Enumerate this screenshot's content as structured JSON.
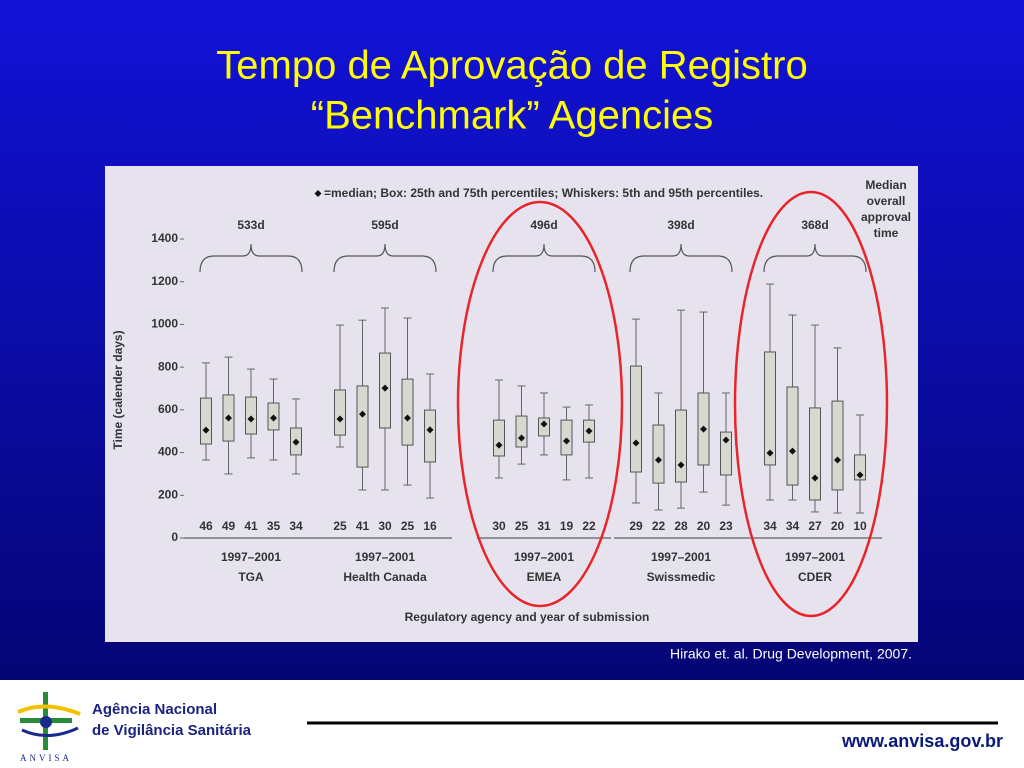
{
  "slide": {
    "title_lines": [
      "Tempo de Aprovação de Registro",
      "“Benchmark” Agencies"
    ],
    "citation": "Hirako et. al. Drug Development, 2007.",
    "footer": {
      "org_lines": [
        "Agência Nacional",
        "de Vigilância Sanitária"
      ],
      "logo_text": "ANVISA",
      "url": "www.anvisa.gov.br"
    }
  },
  "chart_data": {
    "type": "box",
    "legend_text": "=median; Box: 25th and 75th percentiles; Whiskers: 5th and 95th percentiles.",
    "median_note_lines": [
      "Median",
      "overall",
      "approval",
      "time"
    ],
    "y_label": "Time (calender days)",
    "x_label": "Regulatory agency and year of submission",
    "ylim": [
      0,
      1400
    ],
    "yticks": [
      0,
      200,
      400,
      600,
      800,
      1000,
      1200,
      1400
    ],
    "groups": [
      {
        "period": "1997–2001",
        "agency": "TGA",
        "median_time": "533d",
        "boxes": [
          {
            "n": 46,
            "p5": 365,
            "q1": 440,
            "median": 505,
            "q3": 655,
            "p95": 820
          },
          {
            "n": 49,
            "p5": 300,
            "q1": 454,
            "median": 562,
            "q3": 670,
            "p95": 847
          },
          {
            "n": 41,
            "p5": 375,
            "q1": 487,
            "median": 557,
            "q3": 660,
            "p95": 791
          },
          {
            "n": 35,
            "p5": 365,
            "q1": 506,
            "median": 562,
            "q3": 632,
            "p95": 744
          },
          {
            "n": 34,
            "p5": 300,
            "q1": 389,
            "median": 449,
            "q3": 515,
            "p95": 651
          }
        ]
      },
      {
        "period": "1997–2001",
        "agency": "Health Canada",
        "median_time": "595d",
        "boxes": [
          {
            "n": 25,
            "p5": 426,
            "q1": 482,
            "median": 557,
            "q3": 693,
            "p95": 997
          },
          {
            "n": 41,
            "p5": 225,
            "q1": 332,
            "median": 580,
            "q3": 712,
            "p95": 1020
          },
          {
            "n": 30,
            "p5": 225,
            "q1": 515,
            "median": 702,
            "q3": 866,
            "p95": 1077
          },
          {
            "n": 25,
            "p5": 248,
            "q1": 435,
            "median": 562,
            "q3": 744,
            "p95": 1030
          },
          {
            "n": 16,
            "p5": 187,
            "q1": 356,
            "median": 506,
            "q3": 599,
            "p95": 768
          }
        ]
      },
      {
        "period": "1997–2001",
        "agency": "EMEA",
        "median_time": "496d",
        "boxes": [
          {
            "n": 30,
            "p5": 281,
            "q1": 384,
            "median": 435,
            "q3": 552,
            "p95": 740
          },
          {
            "n": 25,
            "p5": 346,
            "q1": 426,
            "median": 468,
            "q3": 571,
            "p95": 712
          },
          {
            "n": 31,
            "p5": 389,
            "q1": 478,
            "median": 534,
            "q3": 562,
            "p95": 679
          },
          {
            "n": 19,
            "p5": 272,
            "q1": 389,
            "median": 454,
            "q3": 552,
            "p95": 613
          },
          {
            "n": 22,
            "p5": 281,
            "q1": 449,
            "median": 501,
            "q3": 552,
            "p95": 623
          }
        ]
      },
      {
        "period": "1997–2001",
        "agency": "Swissmedic",
        "median_time": "398d",
        "boxes": [
          {
            "n": 29,
            "p5": 164,
            "q1": 309,
            "median": 445,
            "q3": 805,
            "p95": 1025
          },
          {
            "n": 22,
            "p5": 131,
            "q1": 257,
            "median": 365,
            "q3": 529,
            "p95": 679
          },
          {
            "n": 28,
            "p5": 140,
            "q1": 262,
            "median": 342,
            "q3": 599,
            "p95": 1067
          },
          {
            "n": 20,
            "p5": 215,
            "q1": 342,
            "median": 510,
            "q3": 679,
            "p95": 1058
          },
          {
            "n": 23,
            "p5": 154,
            "q1": 295,
            "median": 459,
            "q3": 496,
            "p95": 679
          }
        ]
      },
      {
        "period": "1997–2001",
        "agency": "CDER",
        "median_time": "368d",
        "boxes": [
          {
            "n": 34,
            "p5": 178,
            "q1": 342,
            "median": 398,
            "q3": 871,
            "p95": 1189
          },
          {
            "n": 34,
            "p5": 178,
            "q1": 248,
            "median": 407,
            "q3": 707,
            "p95": 1044
          },
          {
            "n": 27,
            "p5": 122,
            "q1": 178,
            "median": 281,
            "q3": 609,
            "p95": 997
          },
          {
            "n": 20,
            "p5": 117,
            "q1": 225,
            "median": 365,
            "q3": 641,
            "p95": 890
          },
          {
            "n": 10,
            "p5": 117,
            "q1": 272,
            "median": 295,
            "q3": 389,
            "p95": 576
          }
        ]
      }
    ]
  }
}
